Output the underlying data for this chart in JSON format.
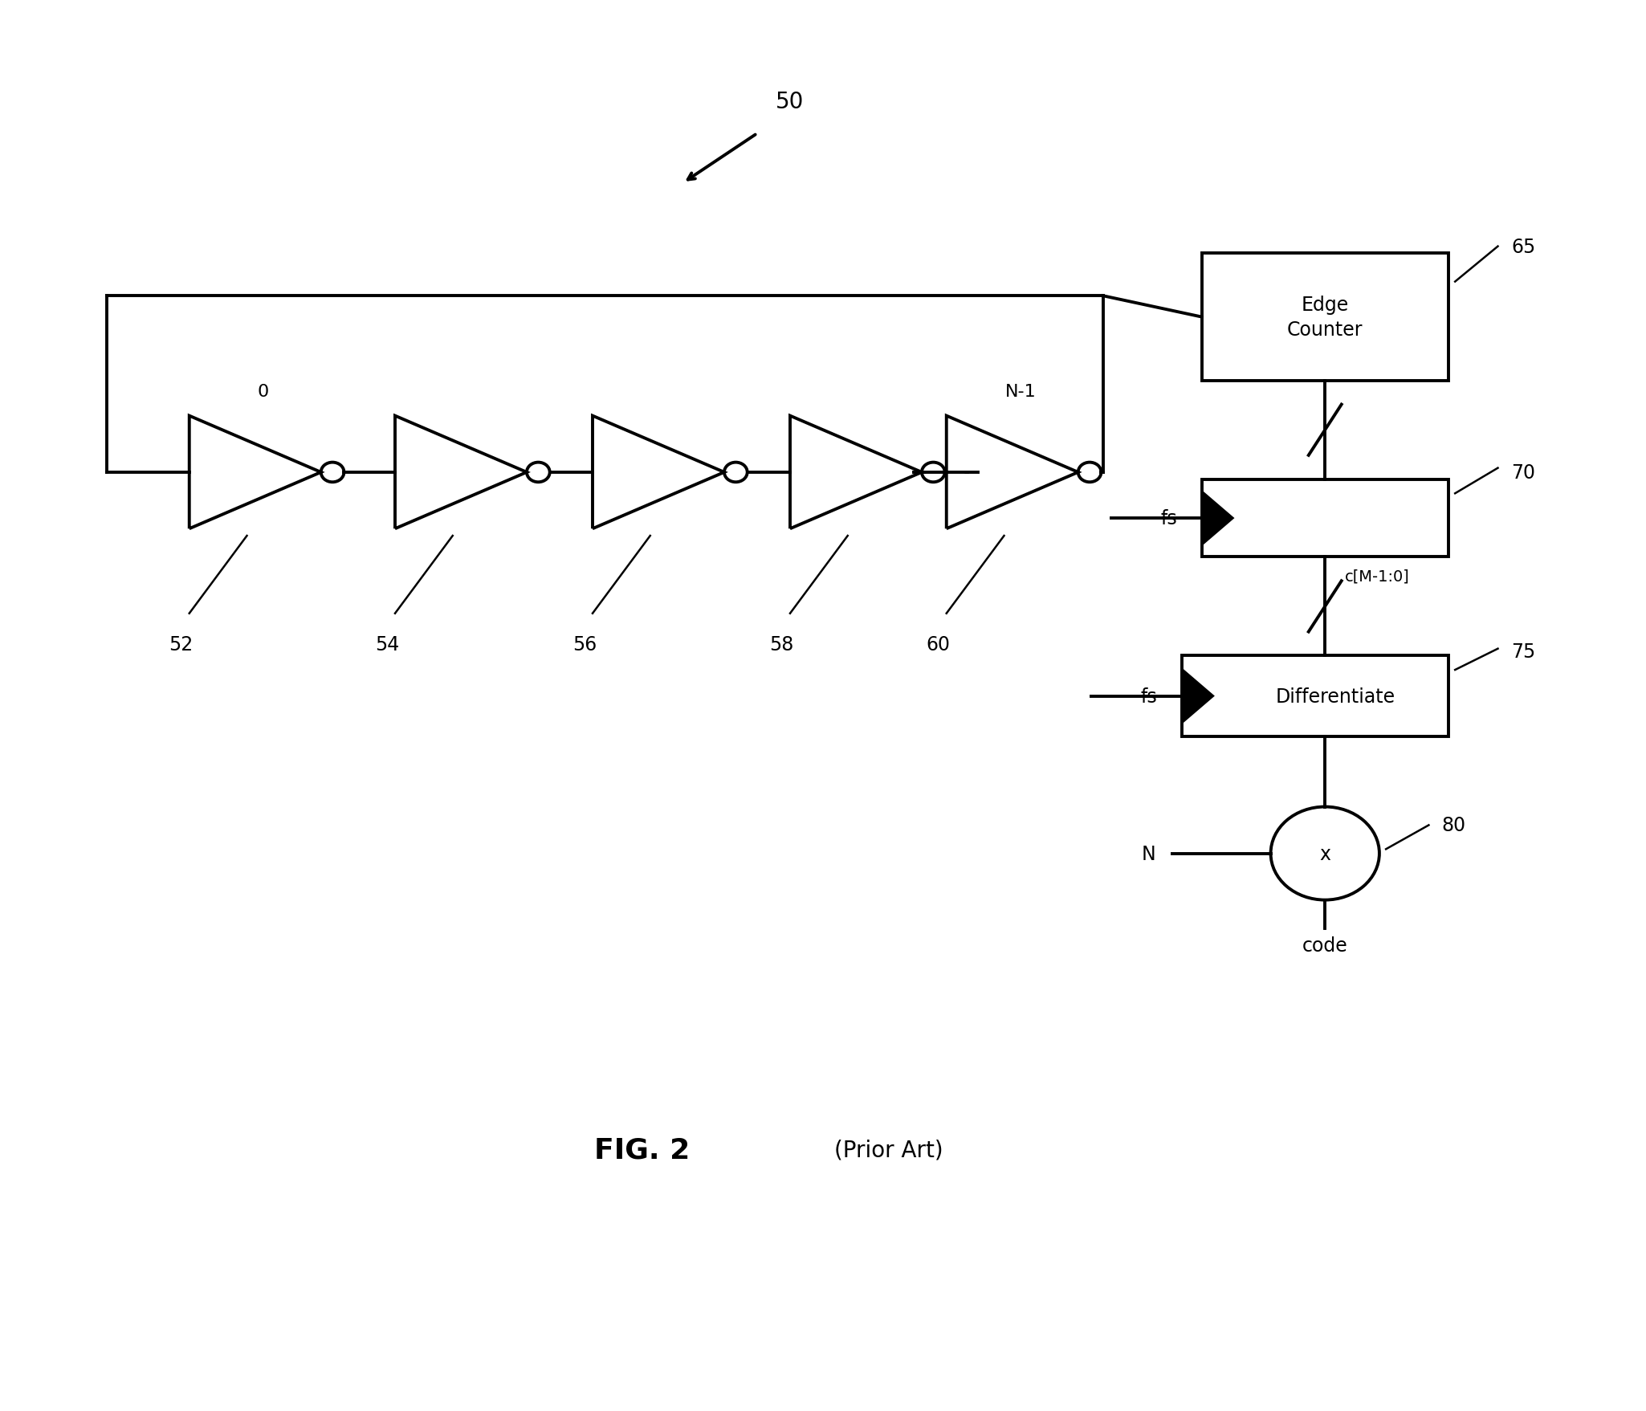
{
  "bg_color": "#ffffff",
  "fig_width": 20.5,
  "fig_height": 17.58,
  "title_label": "FIG. 2",
  "prior_art_label": "(Prior Art)",
  "ref_50": "50",
  "ref_52": "52",
  "ref_54": "54",
  "ref_56": "56",
  "ref_58": "58",
  "ref_60": "60",
  "ref_65": "65",
  "ref_70": "70",
  "ref_75": "75",
  "ref_80": "80",
  "lbl_0": "0",
  "lbl_N1": "N-1",
  "lbl_edge_counter": "Edge\nCounter",
  "lbl_differentiate": "Differentiate",
  "lbl_fs1": "fs",
  "lbl_fs2": "fs",
  "lbl_cM": "c[M-1:0]",
  "lbl_N": "N",
  "lbl_x": "x",
  "lbl_code": "code",
  "lw_main": 2.8,
  "lw_ref": 1.8,
  "fs_main": 17,
  "fs_ref": 17,
  "fs_title": 26,
  "fs_prior": 20
}
